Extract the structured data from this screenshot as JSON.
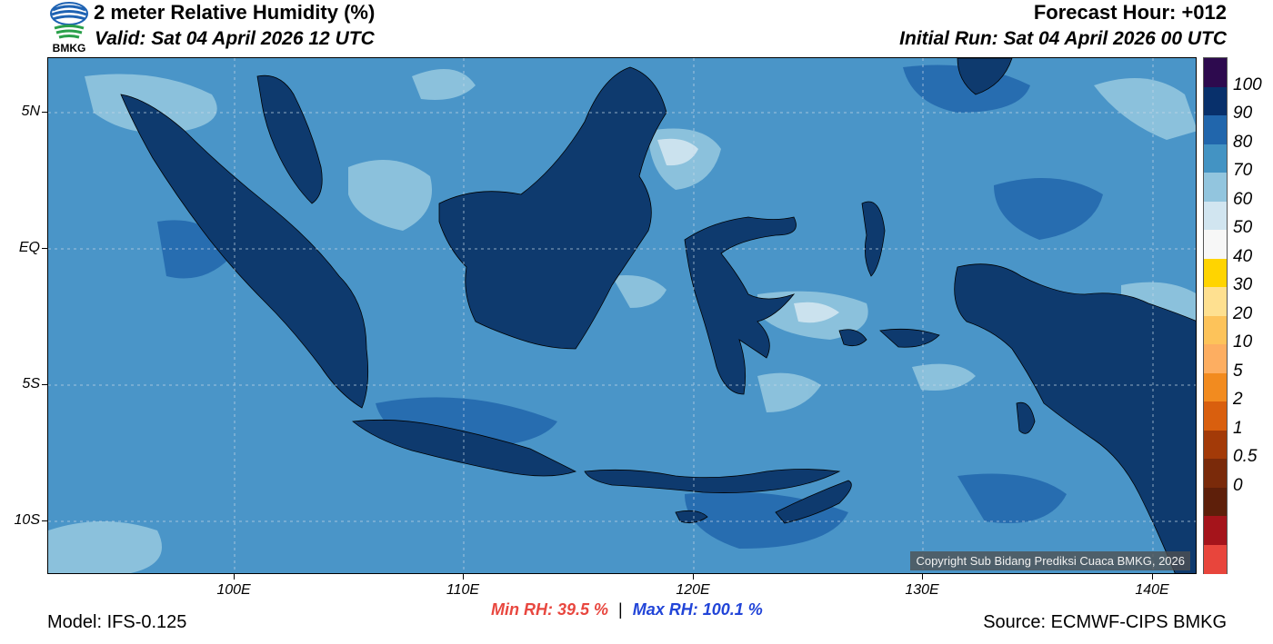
{
  "header": {
    "title": "2 meter Relative Humidity (%)",
    "valid": "Valid: Sat 04 April 2026 12 UTC",
    "forecast_hour": "Forecast Hour: +012",
    "initial_run": "Initial Run: Sat 04 April 2026 00 UTC"
  },
  "logo": {
    "text": "BMKG"
  },
  "map": {
    "lat_labels": [
      "5N",
      "EQ",
      "5S",
      "10S"
    ],
    "lon_labels": [
      "100E",
      "110E",
      "120E",
      "130E",
      "140E"
    ],
    "copyright": "Copyright Sub Bidang Prediksi Cuaca BMKG, 2026"
  },
  "stats": {
    "min_rh": "Min RH:  39.5 %",
    "separator": "|",
    "max_rh": "Max RH: 100.1 %"
  },
  "footer": {
    "model": "Model: IFS-0.125",
    "source": "Source: ECMWF-CIPS BMKG"
  },
  "colorbar": {
    "labels": [
      "100",
      "90",
      "80",
      "70",
      "60",
      "50",
      "40",
      "30",
      "20",
      "10",
      "5",
      "2",
      "1",
      "0.5",
      "0"
    ],
    "colors": [
      "#2d0a4e",
      "#08306b",
      "#2166ac",
      "#4393c3",
      "#92c5de",
      "#d1e5f0",
      "#f7f7f7",
      "#ffd400",
      "#fee090",
      "#fdc35a",
      "#fdae61",
      "#f28b1f",
      "#d95f0e",
      "#a33a08",
      "#7a2a0a",
      "#5e1f0a",
      "#a5141b",
      "#e8453c"
    ]
  },
  "colors": {
    "ocean": "#4a95c8",
    "land": "#0e3a6e",
    "min_text": "#e8473f",
    "max_text": "#2245d8"
  }
}
